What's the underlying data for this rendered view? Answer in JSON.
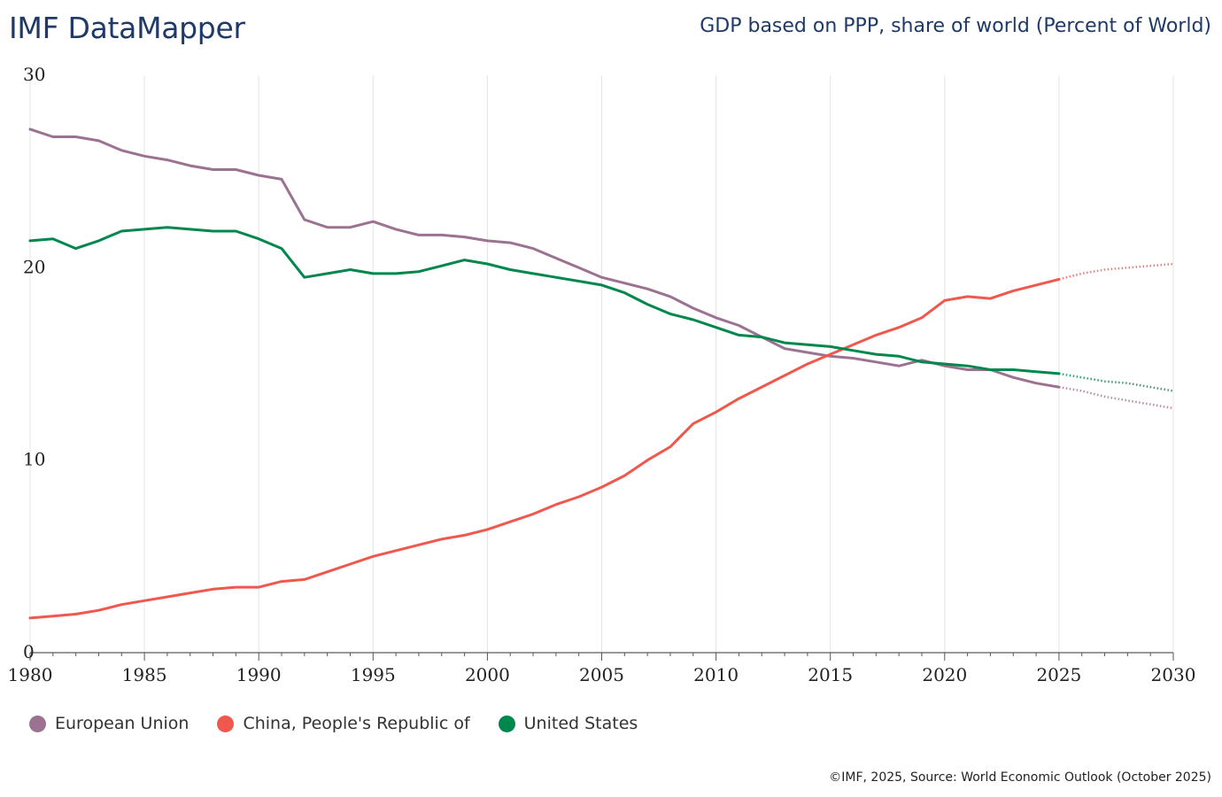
{
  "header": {
    "brand": "IMF DataMapper",
    "title": "GDP based on PPP, share of world (Percent of World)"
  },
  "footer": {
    "source": "©IMF, 2025, Source: World Economic Outlook (October 2025)"
  },
  "chart_data": {
    "type": "line",
    "title": "GDP based on PPP, share of world (Percent of World)",
    "xlabel": "",
    "ylabel": "",
    "xlim": [
      1980,
      2030
    ],
    "ylim": [
      0,
      30
    ],
    "x_ticks": [
      1980,
      1985,
      1990,
      1995,
      2000,
      2005,
      2010,
      2015,
      2020,
      2025,
      2030
    ],
    "y_ticks": [
      0,
      10,
      20,
      30
    ],
    "grid": "vertical",
    "projection_start": 2025,
    "legend_position": "bottom-left",
    "series": [
      {
        "name": "European Union",
        "color": "#9b7291",
        "points": [
          [
            1980,
            27.2
          ],
          [
            1981,
            26.8
          ],
          [
            1982,
            26.8
          ],
          [
            1983,
            26.6
          ],
          [
            1984,
            26.1
          ],
          [
            1985,
            25.8
          ],
          [
            1986,
            25.6
          ],
          [
            1987,
            25.3
          ],
          [
            1988,
            25.1
          ],
          [
            1989,
            25.1
          ],
          [
            1990,
            24.8
          ],
          [
            1991,
            24.6
          ],
          [
            1992,
            22.5
          ],
          [
            1993,
            22.1
          ],
          [
            1994,
            22.1
          ],
          [
            1995,
            22.4
          ],
          [
            1996,
            22.0
          ],
          [
            1997,
            21.7
          ],
          [
            1998,
            21.7
          ],
          [
            1999,
            21.6
          ],
          [
            2000,
            21.4
          ],
          [
            2001,
            21.3
          ],
          [
            2002,
            21.0
          ],
          [
            2003,
            20.5
          ],
          [
            2004,
            20.0
          ],
          [
            2005,
            19.5
          ],
          [
            2006,
            19.2
          ],
          [
            2007,
            18.9
          ],
          [
            2008,
            18.5
          ],
          [
            2009,
            17.9
          ],
          [
            2010,
            17.4
          ],
          [
            2011,
            17.0
          ],
          [
            2012,
            16.4
          ],
          [
            2013,
            15.8
          ],
          [
            2014,
            15.6
          ],
          [
            2015,
            15.4
          ],
          [
            2016,
            15.3
          ],
          [
            2017,
            15.1
          ],
          [
            2018,
            14.9
          ],
          [
            2019,
            15.2
          ],
          [
            2020,
            14.9
          ],
          [
            2021,
            14.7
          ],
          [
            2022,
            14.7
          ],
          [
            2023,
            14.3
          ],
          [
            2024,
            14.0
          ],
          [
            2025,
            13.8
          ],
          [
            2026,
            13.6
          ],
          [
            2027,
            13.3
          ],
          [
            2028,
            13.1
          ],
          [
            2029,
            12.9
          ],
          [
            2030,
            12.7
          ]
        ]
      },
      {
        "name": "China, People's Republic of",
        "color": "#f0584d",
        "points": [
          [
            1980,
            1.8
          ],
          [
            1981,
            1.9
          ],
          [
            1982,
            2.0
          ],
          [
            1983,
            2.2
          ],
          [
            1984,
            2.5
          ],
          [
            1985,
            2.7
          ],
          [
            1986,
            2.9
          ],
          [
            1987,
            3.1
          ],
          [
            1988,
            3.3
          ],
          [
            1989,
            3.4
          ],
          [
            1990,
            3.4
          ],
          [
            1991,
            3.7
          ],
          [
            1992,
            3.8
          ],
          [
            1993,
            4.2
          ],
          [
            1994,
            4.6
          ],
          [
            1995,
            5.0
          ],
          [
            1996,
            5.3
          ],
          [
            1997,
            5.6
          ],
          [
            1998,
            5.9
          ],
          [
            1999,
            6.1
          ],
          [
            2000,
            6.4
          ],
          [
            2001,
            6.8
          ],
          [
            2002,
            7.2
          ],
          [
            2003,
            7.7
          ],
          [
            2004,
            8.1
          ],
          [
            2005,
            8.6
          ],
          [
            2006,
            9.2
          ],
          [
            2007,
            10.0
          ],
          [
            2008,
            10.7
          ],
          [
            2009,
            11.9
          ],
          [
            2010,
            12.5
          ],
          [
            2011,
            13.2
          ],
          [
            2012,
            13.8
          ],
          [
            2013,
            14.4
          ],
          [
            2014,
            15.0
          ],
          [
            2015,
            15.5
          ],
          [
            2016,
            16.0
          ],
          [
            2017,
            16.5
          ],
          [
            2018,
            16.9
          ],
          [
            2019,
            17.4
          ],
          [
            2020,
            18.3
          ],
          [
            2021,
            18.5
          ],
          [
            2022,
            18.4
          ],
          [
            2023,
            18.8
          ],
          [
            2024,
            19.1
          ],
          [
            2025,
            19.4
          ],
          [
            2026,
            19.7
          ],
          [
            2027,
            19.9
          ],
          [
            2028,
            20.0
          ],
          [
            2029,
            20.1
          ],
          [
            2030,
            20.2
          ]
        ]
      },
      {
        "name": "United States",
        "color": "#00874e",
        "points": [
          [
            1980,
            21.4
          ],
          [
            1981,
            21.5
          ],
          [
            1982,
            21.0
          ],
          [
            1983,
            21.4
          ],
          [
            1984,
            21.9
          ],
          [
            1985,
            22.0
          ],
          [
            1986,
            22.1
          ],
          [
            1987,
            22.0
          ],
          [
            1988,
            21.9
          ],
          [
            1989,
            21.9
          ],
          [
            1990,
            21.5
          ],
          [
            1991,
            21.0
          ],
          [
            1992,
            19.5
          ],
          [
            1993,
            19.7
          ],
          [
            1994,
            19.9
          ],
          [
            1995,
            19.7
          ],
          [
            1996,
            19.7
          ],
          [
            1997,
            19.8
          ],
          [
            1998,
            20.1
          ],
          [
            1999,
            20.4
          ],
          [
            2000,
            20.2
          ],
          [
            2001,
            19.9
          ],
          [
            2002,
            19.7
          ],
          [
            2003,
            19.5
          ],
          [
            2004,
            19.3
          ],
          [
            2005,
            19.1
          ],
          [
            2006,
            18.7
          ],
          [
            2007,
            18.1
          ],
          [
            2008,
            17.6
          ],
          [
            2009,
            17.3
          ],
          [
            2010,
            16.9
          ],
          [
            2011,
            16.5
          ],
          [
            2012,
            16.4
          ],
          [
            2013,
            16.1
          ],
          [
            2014,
            16.0
          ],
          [
            2015,
            15.9
          ],
          [
            2016,
            15.7
          ],
          [
            2017,
            15.5
          ],
          [
            2018,
            15.4
          ],
          [
            2019,
            15.1
          ],
          [
            2020,
            15.0
          ],
          [
            2021,
            14.9
          ],
          [
            2022,
            14.7
          ],
          [
            2023,
            14.7
          ],
          [
            2024,
            14.6
          ],
          [
            2025,
            14.5
          ],
          [
            2026,
            14.3
          ],
          [
            2027,
            14.1
          ],
          [
            2028,
            14.0
          ],
          [
            2029,
            13.8
          ],
          [
            2030,
            13.6
          ]
        ]
      }
    ]
  },
  "legend": {
    "items": [
      {
        "label": "European Union",
        "color": "#9b7291"
      },
      {
        "label": "China, People's Republic of",
        "color": "#f0584d"
      },
      {
        "label": "United States",
        "color": "#00874e"
      }
    ]
  }
}
